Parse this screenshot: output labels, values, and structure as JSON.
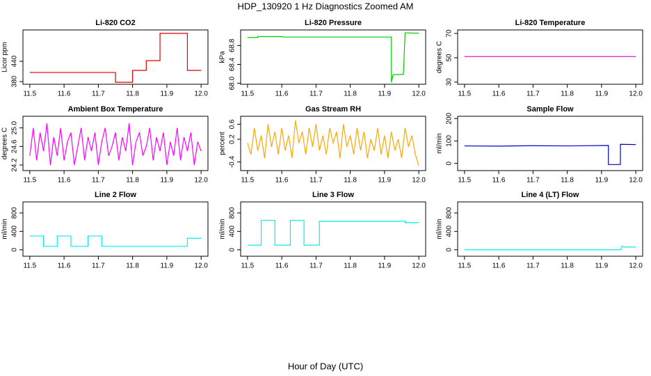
{
  "title": "HDP_130920  1 Hz Diagnostics Zoomed AM",
  "xlabel": "Hour of Day (UTC)",
  "chart_data": [
    {
      "type": "line",
      "title": "Li-820 CO2",
      "ylabel": "Licor ppm",
      "color": "#dd0000",
      "x": [
        11.5,
        11.75,
        11.75,
        11.8,
        11.8,
        11.84,
        11.84,
        11.88,
        11.88,
        11.96,
        11.96,
        12.0
      ],
      "values": [
        407,
        407,
        378,
        378,
        413,
        413,
        442,
        442,
        523,
        523,
        413,
        413
      ],
      "xlim": [
        11.48,
        12.02
      ],
      "ylim": [
        372,
        533
      ],
      "xticks": [
        {
          "value": 11.5,
          "label": "11.5"
        },
        11.6,
        11.7,
        11.8,
        11.9,
        {
          "value": 12,
          "label": "12.0"
        }
      ],
      "yticks": [
        380,
        440
      ]
    },
    {
      "type": "line",
      "title": "Li-820 Pressure",
      "ylabel": "kPa",
      "color": "#00cc00",
      "x": [
        11.5,
        11.53,
        11.53,
        11.6,
        11.6,
        11.92,
        11.92,
        11.925,
        11.955,
        11.96,
        12.0
      ],
      "values": [
        68.97,
        68.97,
        68.99,
        68.99,
        68.98,
        68.98,
        68.02,
        68.18,
        68.19,
        69.07,
        69.06
      ],
      "xlim": [
        11.48,
        12.02
      ],
      "ylim": [
        67.98,
        69.13
      ],
      "xticks": [
        {
          "value": 11.5,
          "label": "11.5"
        },
        11.6,
        11.7,
        11.8,
        11.9,
        {
          "value": 12,
          "label": "12.0"
        }
      ],
      "yticks": [
        {
          "value": 68,
          "label": "68.0"
        },
        68.4,
        68.8
      ]
    },
    {
      "type": "line",
      "title": "Li-820 Temperature",
      "ylabel": "degrees C",
      "color": "#cc00cc",
      "x": [
        11.5,
        12.0
      ],
      "values": [
        51,
        51
      ],
      "xlim": [
        11.48,
        12.02
      ],
      "ylim": [
        28.2,
        72.9
      ],
      "xticks": [
        {
          "value": 11.5,
          "label": "11.5"
        },
        11.6,
        11.7,
        11.8,
        11.9,
        {
          "value": 12,
          "label": "12.0"
        }
      ],
      "yticks": [
        30,
        50,
        70
      ]
    },
    {
      "type": "line",
      "title": "Ambient Box Temperature",
      "ylabel": "degrees C",
      "color": "#ff00ff",
      "x": [
        11.5,
        11.51,
        11.52,
        11.53,
        11.54,
        11.55,
        11.56,
        11.57,
        11.58,
        11.59,
        11.6,
        11.61,
        11.62,
        11.63,
        11.64,
        11.65,
        11.66,
        11.67,
        11.68,
        11.69,
        11.7,
        11.71,
        11.72,
        11.73,
        11.74,
        11.75,
        11.76,
        11.77,
        11.78,
        11.79,
        11.8,
        11.81,
        11.82,
        11.83,
        11.84,
        11.85,
        11.86,
        11.87,
        11.88,
        11.89,
        11.9,
        11.91,
        11.92,
        11.93,
        11.94,
        11.95,
        11.96,
        11.97,
        11.98,
        11.99,
        12.0
      ],
      "values": [
        24.4,
        25.0,
        24.3,
        24.9,
        24.5,
        25.1,
        24.2,
        24.8,
        24.4,
        25.0,
        24.3,
        24.7,
        24.9,
        24.2,
        24.6,
        25.0,
        24.3,
        24.8,
        24.5,
        24.9,
        24.2,
        24.7,
        25.0,
        24.4,
        24.6,
        24.9,
        24.3,
        24.8,
        24.5,
        25.1,
        24.2,
        24.7,
        24.9,
        24.4,
        24.6,
        25.0,
        24.3,
        24.8,
        24.5,
        24.9,
        24.2,
        24.7,
        24.4,
        25.0,
        24.3,
        24.8,
        24.5,
        24.9,
        24.2,
        24.7,
        24.5
      ],
      "xlim": [
        11.48,
        12.02
      ],
      "ylim": [
        24.08,
        25.25
      ],
      "xticks": [
        {
          "value": 11.5,
          "label": "11.5"
        },
        11.6,
        11.7,
        11.8,
        11.9,
        {
          "value": 12,
          "label": "12.0"
        }
      ],
      "yticks": [
        24.2,
        24.6,
        {
          "value": 25,
          "label": "25.0"
        }
      ]
    },
    {
      "type": "line",
      "title": "Gas Stream RH",
      "ylabel": "percent",
      "color": "#ffa500",
      "x": [
        11.5,
        11.51,
        11.52,
        11.53,
        11.54,
        11.55,
        11.56,
        11.57,
        11.58,
        11.59,
        11.6,
        11.61,
        11.62,
        11.63,
        11.64,
        11.65,
        11.66,
        11.67,
        11.68,
        11.69,
        11.7,
        11.71,
        11.72,
        11.73,
        11.74,
        11.75,
        11.76,
        11.77,
        11.78,
        11.79,
        11.8,
        11.81,
        11.82,
        11.83,
        11.84,
        11.85,
        11.86,
        11.87,
        11.88,
        11.89,
        11.9,
        11.91,
        11.92,
        11.93,
        11.94,
        11.95,
        11.96,
        11.97,
        11.98,
        11.99,
        12.0
      ],
      "values": [
        0.1,
        -0.2,
        0.5,
        -0.1,
        0.3,
        -0.3,
        0.6,
        0.0,
        0.4,
        -0.2,
        0.5,
        -0.1,
        0.3,
        -0.3,
        0.7,
        0.1,
        0.4,
        -0.2,
        0.5,
        0.0,
        0.6,
        -0.1,
        0.3,
        -0.2,
        0.5,
        0.1,
        0.4,
        -0.3,
        0.6,
        0.0,
        0.3,
        -0.2,
        0.5,
        -0.1,
        0.4,
        -0.3,
        0.2,
        -0.1,
        0.5,
        -0.2,
        0.3,
        -0.3,
        0.4,
        -0.1,
        0.2,
        -0.3,
        0.5,
        0.0,
        0.3,
        -0.2,
        -0.5
      ],
      "xlim": [
        11.48,
        12.02
      ],
      "ylim": [
        -0.63,
        0.81
      ],
      "xticks": [
        {
          "value": 11.5,
          "label": "11.5"
        },
        11.6,
        11.7,
        11.8,
        11.9,
        {
          "value": 12,
          "label": "12.0"
        }
      ],
      "yticks": [
        -0.4,
        0.2,
        0.6
      ]
    },
    {
      "type": "line",
      "title": "Sample Flow",
      "ylabel": "ml/min",
      "color": "#0000cc",
      "x": [
        11.5,
        11.6,
        11.7,
        11.8,
        11.92,
        11.92,
        11.955,
        11.955,
        12.0
      ],
      "values": [
        78,
        77,
        79,
        78,
        80,
        -5,
        -5,
        85,
        84
      ],
      "xlim": [
        11.48,
        12.02
      ],
      "ylim": [
        -32,
        210
      ],
      "xticks": [
        {
          "value": 11.5,
          "label": "11.5"
        },
        11.6,
        11.7,
        11.8,
        11.9,
        {
          "value": 12,
          "label": "12.0"
        }
      ],
      "yticks": [
        0,
        100,
        200
      ]
    },
    {
      "type": "line",
      "title": "Line 2 Flow",
      "ylabel": "ml/min",
      "color": "#00eeee",
      "x": [
        11.5,
        11.54,
        11.54,
        11.58,
        11.58,
        11.62,
        11.62,
        11.67,
        11.67,
        11.71,
        11.71,
        11.96,
        11.96,
        12.0
      ],
      "values": [
        300,
        300,
        75,
        75,
        300,
        300,
        75,
        75,
        300,
        300,
        75,
        75,
        250,
        250
      ],
      "xlim": [
        11.48,
        12.02
      ],
      "ylim": [
        -140,
        1040
      ],
      "xticks": [
        {
          "value": 11.5,
          "label": "11.5"
        },
        11.6,
        11.7,
        11.8,
        11.9,
        {
          "value": 12,
          "label": "12.0"
        }
      ],
      "yticks": [
        0,
        400,
        800
      ]
    },
    {
      "type": "line",
      "title": "Line 3 Flow",
      "ylabel": "ml/min",
      "color": "#00eeee",
      "x": [
        11.5,
        11.54,
        11.54,
        11.58,
        11.58,
        11.625,
        11.625,
        11.665,
        11.665,
        11.71,
        11.71,
        11.96,
        11.96,
        12.0
      ],
      "values": [
        100,
        100,
        640,
        640,
        100,
        100,
        640,
        640,
        100,
        100,
        620,
        620,
        590,
        590
      ],
      "xlim": [
        11.48,
        12.02
      ],
      "ylim": [
        -140,
        1040
      ],
      "xticks": [
        {
          "value": 11.5,
          "label": "11.5"
        },
        11.6,
        11.7,
        11.8,
        11.9,
        {
          "value": 12,
          "label": "12.0"
        }
      ],
      "yticks": [
        0,
        400,
        800
      ]
    },
    {
      "type": "line",
      "title": "Line 4 (LT) Flow",
      "ylabel": "ml/min",
      "color": "#00eeee",
      "x": [
        11.5,
        11.955,
        11.96,
        11.965,
        12.0
      ],
      "values": [
        0,
        0,
        80,
        60,
        60
      ],
      "xlim": [
        11.48,
        12.02
      ],
      "ylim": [
        -140,
        1040
      ],
      "xticks": [
        {
          "value": 11.5,
          "label": "11.5"
        },
        11.6,
        11.7,
        11.8,
        11.9,
        {
          "value": 12,
          "label": "12.0"
        }
      ],
      "yticks": [
        0,
        400,
        800
      ]
    }
  ]
}
